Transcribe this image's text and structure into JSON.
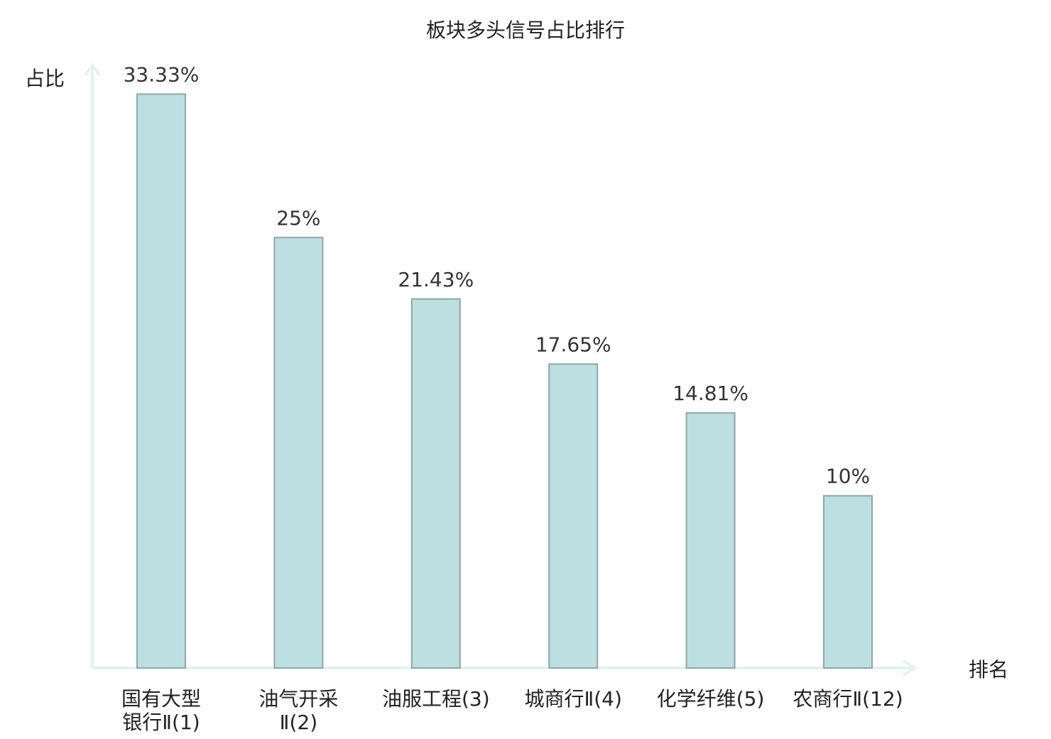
{
  "chart_data": {
    "type": "bar",
    "title": "板块多头信号占比排行",
    "ylabel": "占比",
    "xlabel": "排名",
    "ylim": [
      0,
      35
    ],
    "grid": false,
    "categories": [
      [
        "国有大型",
        "银行Ⅱ(1)"
      ],
      [
        "油气开采",
        "Ⅱ(2)"
      ],
      [
        "油服工程(3)"
      ],
      [
        "城商行Ⅱ(4)"
      ],
      [
        "化学纤维(5)"
      ],
      [
        "农商行Ⅱ(12)"
      ]
    ],
    "values": [
      33.33,
      25,
      21.43,
      17.65,
      14.81,
      10
    ],
    "value_labels": [
      "33.33%",
      "25%",
      "21.43%",
      "17.65%",
      "14.81%",
      "10%"
    ],
    "highlight_category_index": 5,
    "colors": {
      "bar_fill": "#bcdfe2",
      "bar_stroke": "#8fa7a9",
      "axis": "#e2f4f0",
      "text": "#222222",
      "value_text": "#333333",
      "highlight_text": "#d62728"
    }
  }
}
